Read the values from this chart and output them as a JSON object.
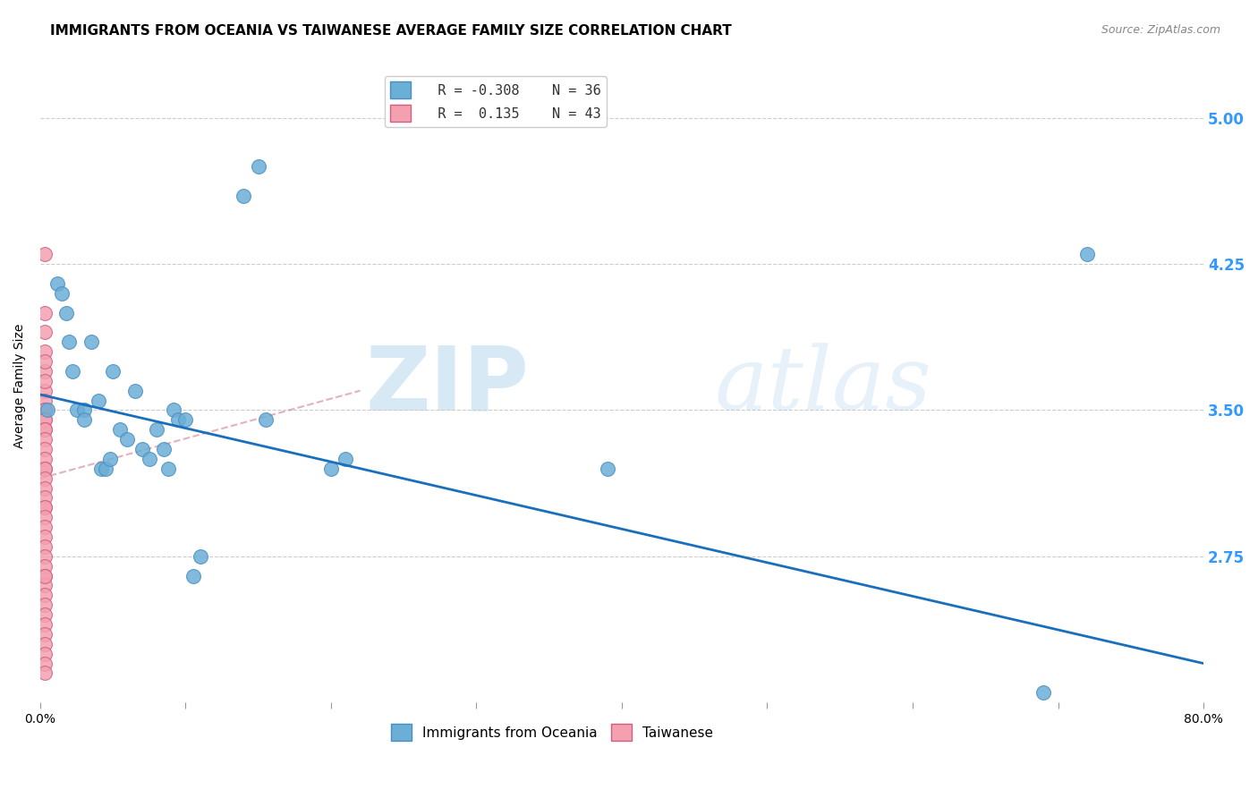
{
  "title": "IMMIGRANTS FROM OCEANIA VS TAIWANESE AVERAGE FAMILY SIZE CORRELATION CHART",
  "source": "Source: ZipAtlas.com",
  "ylabel": "Average Family Size",
  "watermark_zip": "ZIP",
  "watermark_atlas": "atlas",
  "xlim": [
    0.0,
    0.8
  ],
  "ylim": [
    2.0,
    5.25
  ],
  "yticks": [
    2.75,
    3.5,
    4.25,
    5.0
  ],
  "xticks": [
    0.0,
    0.1,
    0.2,
    0.3,
    0.4,
    0.5,
    0.6,
    0.7,
    0.8
  ],
  "xticklabels": [
    "0.0%",
    "",
    "",
    "",
    "",
    "",
    "",
    "",
    "80.0%"
  ],
  "legend_r1": "R = -0.308",
  "legend_n1": "N = 36",
  "legend_r2": "R =  0.135",
  "legend_n2": "N = 43",
  "blue_color": "#6baed6",
  "blue_edge": "#4a8ec0",
  "pink_color": "#f4a0b0",
  "pink_edge": "#d06080",
  "line_blue": "#1a6fbd",
  "line_pink": "#d08090",
  "title_fontsize": 11,
  "axis_label_fontsize": 10,
  "tick_fontsize": 10,
  "right_tick_color": "#3399ff",
  "blue_scatter_x": [
    0.005,
    0.012,
    0.015,
    0.018,
    0.02,
    0.022,
    0.025,
    0.03,
    0.03,
    0.035,
    0.04,
    0.042,
    0.045,
    0.048,
    0.05,
    0.055,
    0.06,
    0.065,
    0.07,
    0.075,
    0.08,
    0.085,
    0.088,
    0.092,
    0.095,
    0.1,
    0.105,
    0.11,
    0.14,
    0.15,
    0.155,
    0.2,
    0.21,
    0.39,
    0.69,
    0.72
  ],
  "blue_scatter_y": [
    3.5,
    4.15,
    4.1,
    4.0,
    3.85,
    3.7,
    3.5,
    3.5,
    3.45,
    3.85,
    3.55,
    3.2,
    3.2,
    3.25,
    3.7,
    3.4,
    3.35,
    3.6,
    3.3,
    3.25,
    3.4,
    3.3,
    3.2,
    3.5,
    3.45,
    3.45,
    2.65,
    2.75,
    4.6,
    4.75,
    3.45,
    3.2,
    3.25,
    3.2,
    2.05,
    4.3
  ],
  "pink_scatter_x": [
    0.003,
    0.003,
    0.003,
    0.003,
    0.003,
    0.003,
    0.003,
    0.003,
    0.003,
    0.003,
    0.003,
    0.003,
    0.003,
    0.003,
    0.003,
    0.003,
    0.003,
    0.003,
    0.003,
    0.003,
    0.003,
    0.003,
    0.003,
    0.003,
    0.003,
    0.003,
    0.003,
    0.003,
    0.003,
    0.003,
    0.003,
    0.003,
    0.003,
    0.003,
    0.003,
    0.003,
    0.003,
    0.003,
    0.003,
    0.003,
    0.003,
    0.003,
    0.003
  ],
  "pink_scatter_y": [
    4.3,
    4.0,
    3.9,
    3.8,
    3.7,
    3.6,
    3.55,
    3.5,
    3.5,
    3.45,
    3.45,
    3.4,
    3.4,
    3.35,
    3.3,
    3.25,
    3.2,
    3.2,
    3.15,
    3.1,
    3.05,
    3.0,
    3.0,
    2.95,
    2.9,
    2.85,
    2.8,
    2.75,
    2.7,
    2.65,
    2.6,
    2.55,
    2.5,
    2.45,
    2.4,
    2.35,
    2.3,
    2.25,
    2.2,
    2.15,
    3.65,
    3.75,
    2.65
  ],
  "blue_line_x": [
    0.0,
    0.8
  ],
  "blue_line_y": [
    3.58,
    2.2
  ],
  "pink_line_x": [
    0.0,
    0.22
  ],
  "pink_line_y": [
    3.15,
    3.6
  ]
}
